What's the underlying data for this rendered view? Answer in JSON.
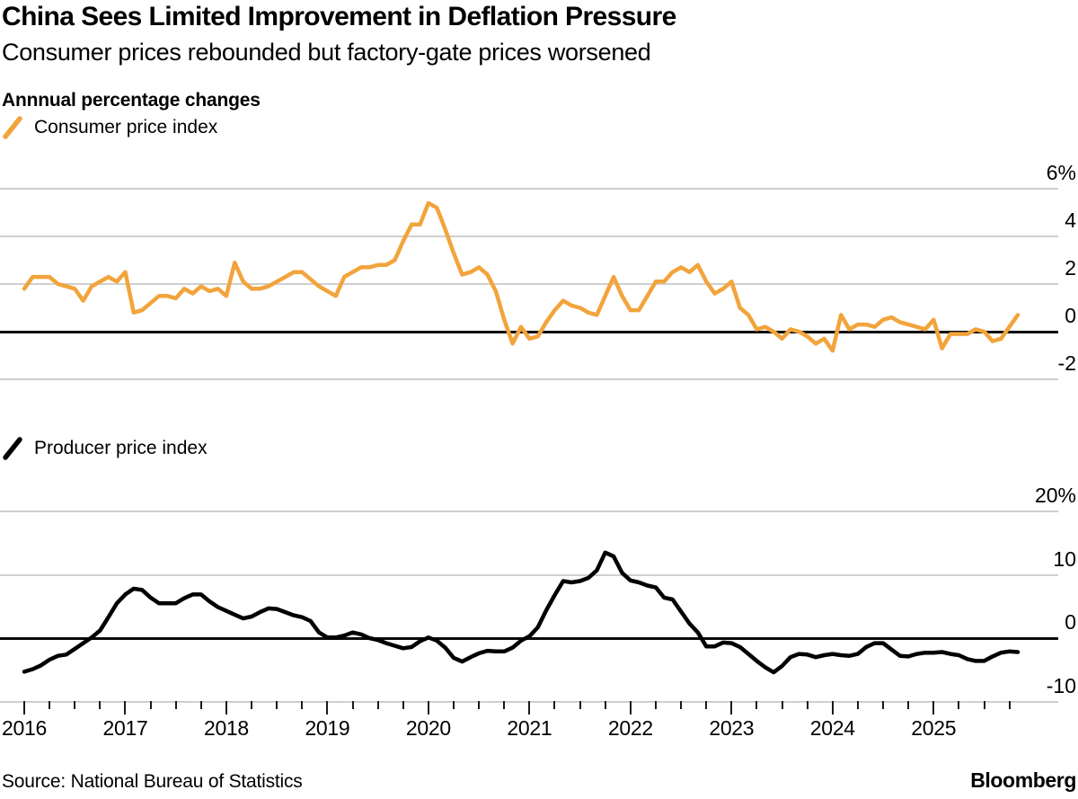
{
  "header": {
    "title": "China Sees Limited Improvement in Deflation Pressure",
    "subtitle": "Consumer prices rebounded but factory-gate prices worsened"
  },
  "panel_label": "Annnual percentage changes",
  "footer": {
    "source": "Source: National Bureau of Statistics",
    "brand": "Bloomberg"
  },
  "colors": {
    "cpi_line": "#F2A43C",
    "ppi_line": "#000000",
    "grid": "#CFCFCF",
    "zero_line": "#0A0A0A",
    "tick": "#1A1A1A"
  },
  "x_axis": {
    "start": "2016-01",
    "end": "2025-11",
    "frequency": "monthly",
    "year_labels": [
      "2016",
      "2017",
      "2018",
      "2019",
      "2020",
      "2021",
      "2022",
      "2023",
      "2024",
      "2025"
    ]
  },
  "chart_data": [
    {
      "type": "line",
      "name": "Consumer price index",
      "color": "#F2A43C",
      "ylabel": "Annual percentage change",
      "ylim": [
        -2,
        6
      ],
      "grid": true,
      "legend_position": "top-left",
      "yticks": [
        {
          "value": 6,
          "label": "6%"
        },
        {
          "value": 4,
          "label": "4"
        },
        {
          "value": 2,
          "label": "2"
        },
        {
          "value": 0,
          "label": "0"
        },
        {
          "value": -2,
          "label": "-2"
        }
      ],
      "values": [
        1.8,
        2.3,
        2.3,
        2.3,
        2.0,
        1.9,
        1.8,
        1.3,
        1.9,
        2.1,
        2.3,
        2.1,
        2.5,
        0.8,
        0.9,
        1.2,
        1.5,
        1.5,
        1.4,
        1.8,
        1.6,
        1.9,
        1.7,
        1.8,
        1.5,
        2.9,
        2.1,
        1.8,
        1.8,
        1.9,
        2.1,
        2.3,
        2.5,
        2.5,
        2.2,
        1.9,
        1.7,
        1.5,
        2.3,
        2.5,
        2.7,
        2.7,
        2.8,
        2.8,
        3.0,
        3.8,
        4.5,
        4.5,
        5.4,
        5.2,
        4.3,
        3.3,
        2.4,
        2.5,
        2.7,
        2.4,
        1.7,
        0.5,
        -0.5,
        0.2,
        -0.3,
        -0.2,
        0.4,
        0.9,
        1.3,
        1.1,
        1.0,
        0.8,
        0.7,
        1.5,
        2.3,
        1.5,
        0.9,
        0.9,
        1.5,
        2.1,
        2.1,
        2.5,
        2.7,
        2.5,
        2.8,
        2.1,
        1.6,
        1.8,
        2.1,
        1.0,
        0.7,
        0.1,
        0.2,
        0.0,
        -0.3,
        0.1,
        0.0,
        -0.2,
        -0.5,
        -0.3,
        -0.8,
        0.7,
        0.1,
        0.3,
        0.3,
        0.2,
        0.5,
        0.6,
        0.4,
        0.3,
        0.2,
        0.1,
        0.5,
        -0.7,
        -0.1,
        -0.1,
        -0.1,
        0.1,
        0.0,
        -0.4,
        -0.3,
        0.2,
        0.7
      ]
    },
    {
      "type": "line",
      "name": "Producer price index",
      "color": "#000000",
      "ylabel": "Annual percentage change",
      "ylim": [
        -10,
        20
      ],
      "grid": true,
      "legend_position": "top-left",
      "yticks": [
        {
          "value": 20,
          "label": "20%"
        },
        {
          "value": 10,
          "label": "10"
        },
        {
          "value": 0,
          "label": "0"
        },
        {
          "value": -10,
          "label": "-10"
        }
      ],
      "values": [
        -5.3,
        -4.9,
        -4.3,
        -3.4,
        -2.8,
        -2.6,
        -1.7,
        -0.8,
        0.1,
        1.2,
        3.3,
        5.5,
        6.9,
        7.8,
        7.6,
        6.4,
        5.5,
        5.5,
        5.5,
        6.3,
        6.9,
        6.9,
        5.8,
        4.9,
        4.3,
        3.7,
        3.1,
        3.4,
        4.1,
        4.7,
        4.6,
        4.1,
        3.6,
        3.3,
        2.7,
        0.9,
        0.1,
        0.1,
        0.4,
        0.9,
        0.6,
        0.0,
        -0.3,
        -0.8,
        -1.2,
        -1.6,
        -1.4,
        -0.5,
        0.1,
        -0.4,
        -1.5,
        -3.1,
        -3.7,
        -3.0,
        -2.4,
        -2.0,
        -2.1,
        -2.1,
        -1.5,
        -0.4,
        0.3,
        1.7,
        4.4,
        6.8,
        9.0,
        8.8,
        9.0,
        9.5,
        10.7,
        13.5,
        12.9,
        10.3,
        9.1,
        8.8,
        8.3,
        8.0,
        6.4,
        6.1,
        4.2,
        2.3,
        0.9,
        -1.3,
        -1.3,
        -0.7,
        -0.8,
        -1.4,
        -2.5,
        -3.6,
        -4.6,
        -5.4,
        -4.4,
        -3.0,
        -2.5,
        -2.6,
        -3.0,
        -2.7,
        -2.5,
        -2.7,
        -2.8,
        -2.5,
        -1.4,
        -0.8,
        -0.8,
        -1.8,
        -2.8,
        -2.9,
        -2.5,
        -2.3,
        -2.3,
        -2.2,
        -2.5,
        -2.7,
        -3.3,
        -3.6,
        -3.6,
        -2.9,
        -2.3,
        -2.1,
        -2.2
      ]
    }
  ]
}
